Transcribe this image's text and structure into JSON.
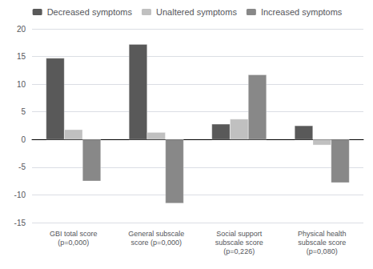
{
  "chart_data": {
    "type": "bar",
    "categories": [
      "GBI total score\n(p=0,000)",
      "General subscale\nscore (p=0,000)",
      "Social support\nsubscale score\n(p=0,226)",
      "Physical health\nsubscale score\n(p=0,080)"
    ],
    "series": [
      {
        "name": "Decreased symptoms",
        "color": "#595959",
        "values": [
          14.7,
          17.2,
          2.8,
          2.5
        ]
      },
      {
        "name": "Unaltered symptoms",
        "color": "#c0c0c0",
        "values": [
          1.8,
          1.3,
          3.7,
          -1.0
        ]
      },
      {
        "name": "Increased symptoms",
        "color": "#888888",
        "values": [
          -7.5,
          -11.5,
          11.7,
          -7.8
        ]
      }
    ],
    "ylim": [
      -15,
      20
    ],
    "yticks": [
      -15,
      -10,
      -5,
      0,
      5,
      10,
      15,
      20
    ],
    "grid": true,
    "legend": "top"
  }
}
